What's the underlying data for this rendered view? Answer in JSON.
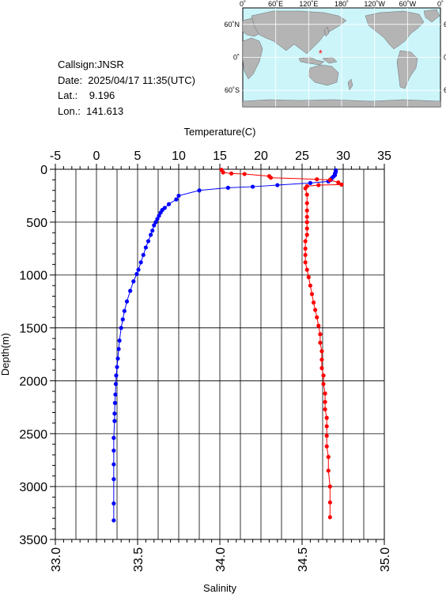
{
  "station": {
    "callsign": "Callsign:JNSR",
    "date": "Date:  2025/04/17 11:35(UTC)",
    "lat": "Lat.:    9.196",
    "lon": "Lon.:  141.613"
  },
  "map": {
    "top_labels": [
      "0˚",
      "60˚E",
      "120˚E",
      "180˚",
      "120˚W",
      "60˚W",
      "0˚"
    ],
    "left_labels": [
      "60˚N",
      "0˚",
      "60˚S"
    ],
    "ocean_color": "#ccf5fa",
    "land_color": "#b4b4b4",
    "marker_color": "#ff0000",
    "marker_lon": 141.613,
    "marker_lat": 9.196
  },
  "chart_data": {
    "type": "line",
    "xlabel_top": "Temperature(C)",
    "xlabel_bottom": "Salinity",
    "ylabel": "Depth(m)",
    "temp_ticks": [
      "-5",
      "0",
      "5",
      "10",
      "15",
      "20",
      "25",
      "30",
      "35"
    ],
    "sal_ticks": [
      "33.0",
      "33.5",
      "34.0",
      "34.5",
      "35.0"
    ],
    "depth_ticks": [
      "0",
      "500",
      "1000",
      "1500",
      "2000",
      "2500",
      "3000",
      "3500"
    ],
    "temp_range": [
      -5,
      35
    ],
    "sal_range": [
      33.0,
      35.0
    ],
    "depth_range": [
      0,
      3500
    ],
    "grid": true,
    "series": [
      {
        "name": "Temperature",
        "color": "#0000ff",
        "axis": "top",
        "points": [
          [
            29.1,
            10
          ],
          [
            29.1,
            25
          ],
          [
            29.0,
            40
          ],
          [
            29.0,
            55
          ],
          [
            28.8,
            70
          ],
          [
            28.6,
            85
          ],
          [
            28.5,
            100
          ],
          [
            28.2,
            115
          ],
          [
            26.0,
            130
          ],
          [
            22.0,
            150
          ],
          [
            19.0,
            165
          ],
          [
            16.0,
            175
          ],
          [
            12.5,
            200
          ],
          [
            10.0,
            250
          ],
          [
            9.7,
            285
          ],
          [
            8.8,
            330
          ],
          [
            8.3,
            365
          ],
          [
            8.0,
            385
          ],
          [
            7.8,
            410
          ],
          [
            7.6,
            440
          ],
          [
            7.4,
            470
          ],
          [
            7.2,
            500
          ],
          [
            7.0,
            530
          ],
          [
            6.8,
            580
          ],
          [
            6.6,
            620
          ],
          [
            6.3,
            680
          ],
          [
            6.0,
            740
          ],
          [
            5.7,
            810
          ],
          [
            5.4,
            880
          ],
          [
            5.1,
            950
          ],
          [
            4.9,
            990
          ],
          [
            4.5,
            1060
          ],
          [
            4.1,
            1150
          ],
          [
            3.7,
            1250
          ],
          [
            3.4,
            1340
          ],
          [
            3.2,
            1420
          ],
          [
            3.0,
            1500
          ],
          [
            2.8,
            1620
          ],
          [
            2.7,
            1700
          ],
          [
            2.6,
            1790
          ],
          [
            2.5,
            1870
          ],
          [
            2.4,
            1950
          ],
          [
            2.35,
            2030
          ],
          [
            2.3,
            2130
          ],
          [
            2.25,
            2210
          ],
          [
            2.2,
            2310
          ],
          [
            2.2,
            2380
          ],
          [
            2.1,
            2540
          ],
          [
            2.1,
            2660
          ],
          [
            2.1,
            2790
          ],
          [
            2.1,
            2930
          ],
          [
            2.1,
            3160
          ],
          [
            2.1,
            3320
          ]
        ]
      },
      {
        "name": "Salinity",
        "color": "#ff0000",
        "axis": "bottom",
        "points": [
          [
            34.01,
            5
          ],
          [
            34.02,
            30
          ],
          [
            34.07,
            40
          ],
          [
            34.15,
            45
          ],
          [
            34.3,
            65
          ],
          [
            34.31,
            80
          ],
          [
            34.59,
            95
          ],
          [
            34.67,
            100
          ],
          [
            34.72,
            125
          ],
          [
            34.74,
            145
          ],
          [
            34.6,
            150
          ],
          [
            34.53,
            160
          ],
          [
            34.52,
            180
          ],
          [
            34.53,
            240
          ],
          [
            34.53,
            320
          ],
          [
            34.53,
            390
          ],
          [
            34.53,
            450
          ],
          [
            34.53,
            500
          ],
          [
            34.53,
            560
          ],
          [
            34.53,
            620
          ],
          [
            34.52,
            680
          ],
          [
            34.52,
            750
          ],
          [
            34.52,
            810
          ],
          [
            34.52,
            880
          ],
          [
            34.53,
            950
          ],
          [
            34.54,
            1020
          ],
          [
            34.55,
            1100
          ],
          [
            34.56,
            1180
          ],
          [
            34.57,
            1260
          ],
          [
            34.58,
            1330
          ],
          [
            34.59,
            1400
          ],
          [
            34.6,
            1480
          ],
          [
            34.61,
            1560
          ],
          [
            34.61,
            1640
          ],
          [
            34.62,
            1720
          ],
          [
            34.62,
            1800
          ],
          [
            34.62,
            1880
          ],
          [
            34.63,
            1950
          ],
          [
            34.63,
            2030
          ],
          [
            34.64,
            2120
          ],
          [
            34.64,
            2200
          ],
          [
            34.64,
            2270
          ],
          [
            34.65,
            2350
          ],
          [
            34.65,
            2430
          ],
          [
            34.65,
            2520
          ],
          [
            34.65,
            2620
          ],
          [
            34.66,
            2720
          ],
          [
            34.66,
            2850
          ],
          [
            34.67,
            3000
          ],
          [
            34.67,
            3150
          ],
          [
            34.67,
            3290
          ]
        ]
      }
    ]
  }
}
